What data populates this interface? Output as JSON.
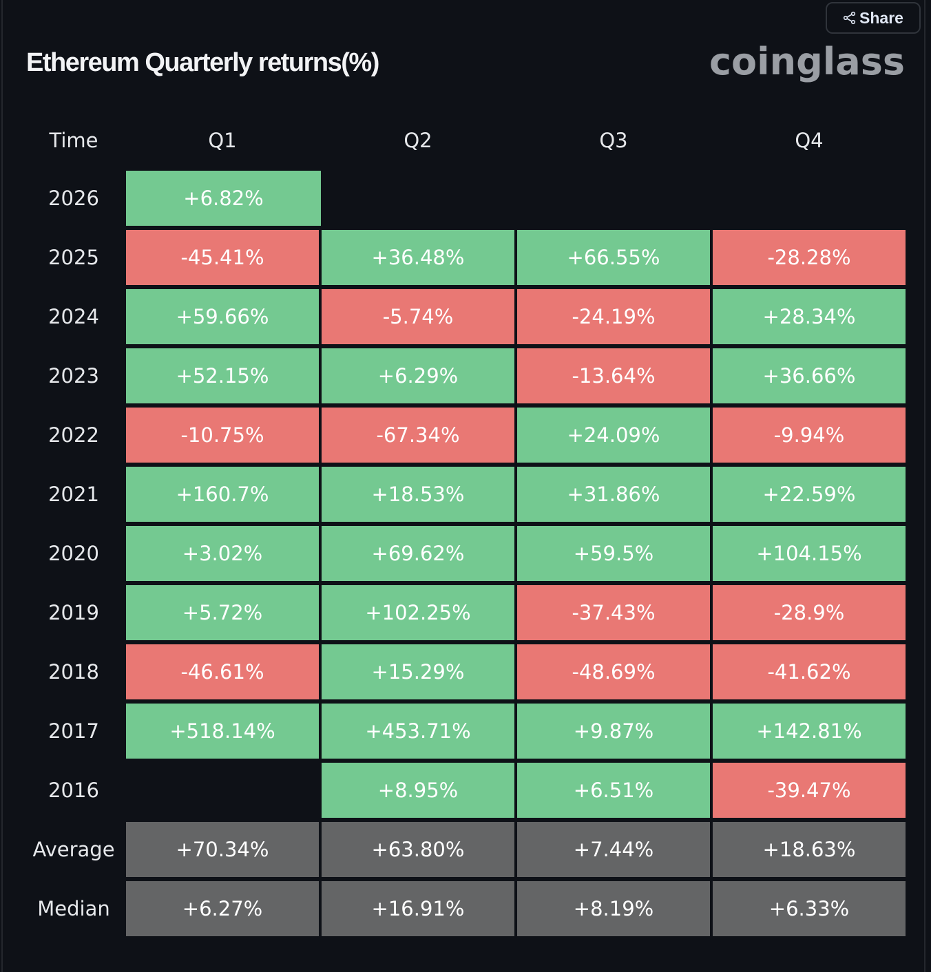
{
  "header": {
    "title": "Ethereum Quarterly returns(%)",
    "share_label": "Share",
    "logo": "coinglass"
  },
  "colors": {
    "positive": "#74c991",
    "negative": "#e97874",
    "summary": "#646566",
    "background": "#0e1117"
  },
  "table": {
    "columns": [
      "Time",
      "Q1",
      "Q2",
      "Q3",
      "Q4"
    ],
    "rows": [
      {
        "year": "2026",
        "values": [
          "+6.82%",
          "",
          "",
          ""
        ]
      },
      {
        "year": "2025",
        "values": [
          "-45.41%",
          "+36.48%",
          "+66.55%",
          "-28.28%"
        ]
      },
      {
        "year": "2024",
        "values": [
          "+59.66%",
          "-5.74%",
          "-24.19%",
          "+28.34%"
        ]
      },
      {
        "year": "2023",
        "values": [
          "+52.15%",
          "+6.29%",
          "-13.64%",
          "+36.66%"
        ]
      },
      {
        "year": "2022",
        "values": [
          "-10.75%",
          "-67.34%",
          "+24.09%",
          "-9.94%"
        ]
      },
      {
        "year": "2021",
        "values": [
          "+160.7%",
          "+18.53%",
          "+31.86%",
          "+22.59%"
        ]
      },
      {
        "year": "2020",
        "values": [
          "+3.02%",
          "+69.62%",
          "+59.5%",
          "+104.15%"
        ]
      },
      {
        "year": "2019",
        "values": [
          "+5.72%",
          "+102.25%",
          "-37.43%",
          "-28.9%"
        ]
      },
      {
        "year": "2018",
        "values": [
          "-46.61%",
          "+15.29%",
          "-48.69%",
          "-41.62%"
        ]
      },
      {
        "year": "2017",
        "values": [
          "+518.14%",
          "+453.71%",
          "+9.87%",
          "+142.81%"
        ]
      },
      {
        "year": "2016",
        "values": [
          "",
          "+8.95%",
          "+6.51%",
          "-39.47%"
        ]
      }
    ],
    "summary": [
      {
        "label": "Average",
        "values": [
          "+70.34%",
          "+63.80%",
          "+7.44%",
          "+18.63%"
        ]
      },
      {
        "label": "Median",
        "values": [
          "+6.27%",
          "+16.91%",
          "+8.19%",
          "+6.33%"
        ]
      }
    ]
  }
}
